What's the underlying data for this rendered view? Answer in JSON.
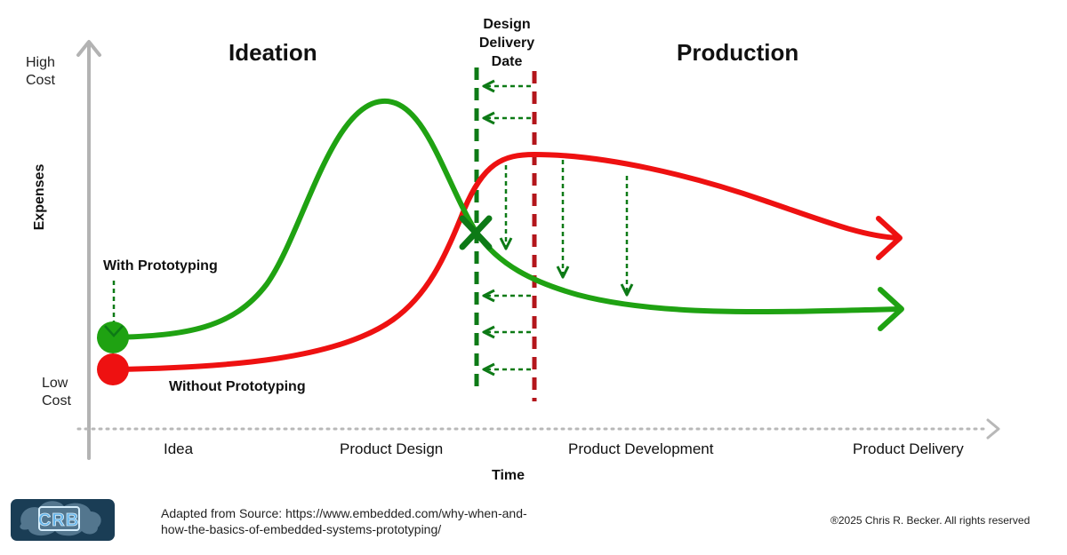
{
  "title_ideation": "Ideation",
  "title_production": "Production",
  "milestone": {
    "line1": "Design",
    "line2": "Delivery",
    "line3": "Date"
  },
  "y_axis": {
    "title": "Expenses",
    "high_line1": "High",
    "high_line2": "Cost",
    "low_line1": "Low",
    "low_line2": "Cost"
  },
  "x_axis": {
    "title": "Time",
    "stages": [
      "Idea",
      "Product Design",
      "Product Development",
      "Product Delivery"
    ]
  },
  "series": {
    "with": "With Prototyping",
    "without": "Without Prototyping"
  },
  "colors": {
    "with": "#1fa212",
    "without": "#ee1111",
    "design_date": "#0d7a16",
    "late_date": "#b3161b",
    "axis": "#b3b3b3",
    "logo_bg": "#1a3d55",
    "logo_text": "#63b2e8"
  },
  "logo": {
    "text": "CRB"
  },
  "footer": {
    "source_line1": "Adapted from Source: https://www.embedded.com/why-when-and-",
    "source_line2": "how-the-basics-of-embedded-systems-prototyping/",
    "copyright": "®2025 Chris R. Becker.  All rights reserved"
  }
}
